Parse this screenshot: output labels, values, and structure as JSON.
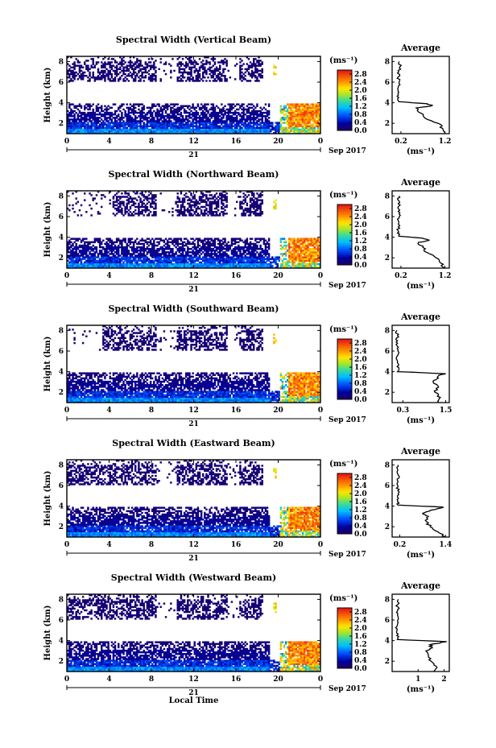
{
  "chart_data": [
    {
      "type": "heatmap",
      "title": "Spectral Width (Vertical Beam)",
      "ylabel": "Height (km)",
      "x_ticks": [
        "0",
        "4",
        "8",
        "12",
        "16",
        "20",
        "0"
      ],
      "y_ticks": [
        "2",
        "4",
        "6",
        "8"
      ],
      "date_day": "21",
      "date_label": "Sep 2017",
      "colorbar": {
        "unit": "(ms⁻¹)",
        "ticks": [
          "0.0",
          "0.4",
          "0.8",
          "1.2",
          "1.6",
          "2.0",
          "2.4",
          "2.8"
        ],
        "range": [
          0,
          3.0
        ]
      },
      "profile": {
        "title": "Average",
        "xlabel": "(ms⁻¹)",
        "x_ticks": [
          "0.2",
          "1.2"
        ],
        "xlim": [
          0.0,
          1.3
        ],
        "y_ticks": [
          "2",
          "4",
          "6",
          "8"
        ],
        "heights": [
          1.0,
          1.5,
          2.0,
          2.5,
          3.0,
          3.5,
          3.7,
          3.9,
          4.1,
          4.5,
          5.0,
          5.5,
          6.0,
          6.5,
          7.0,
          7.5,
          8.0
        ],
        "values": [
          1.2,
          1.15,
          1.05,
          0.75,
          0.65,
          0.55,
          0.9,
          0.8,
          0.15,
          0.15,
          0.15,
          0.14,
          0.16,
          0.14,
          0.15,
          0.18,
          0.16
        ]
      }
    },
    {
      "type": "heatmap",
      "title": "Spectral Width (Northward Beam)",
      "ylabel": "Height (km)",
      "x_ticks": [
        "0",
        "4",
        "8",
        "12",
        "16",
        "20",
        "0"
      ],
      "y_ticks": [
        "2",
        "4",
        "6",
        "8"
      ],
      "date_day": "21",
      "date_label": "Sep 2017",
      "colorbar": {
        "unit": "(ms⁻¹)",
        "ticks": [
          "0.0",
          "0.4",
          "0.8",
          "1.2",
          "1.6",
          "2.0",
          "2.4",
          "2.8"
        ],
        "range": [
          0,
          3.0
        ]
      },
      "profile": {
        "title": "Average",
        "xlabel": "(ms⁻¹)",
        "x_ticks": [
          "0.2",
          "1.2"
        ],
        "xlim": [
          0.0,
          1.3
        ],
        "y_ticks": [
          "2",
          "4",
          "6",
          "8"
        ],
        "heights": [
          1.0,
          1.5,
          2.0,
          2.5,
          3.0,
          3.5,
          3.7,
          3.9,
          4.1,
          4.5,
          5.0,
          5.5,
          6.0,
          6.5,
          7.0,
          7.5,
          8.0
        ],
        "values": [
          1.2,
          1.1,
          1.0,
          0.8,
          0.7,
          0.6,
          0.85,
          0.7,
          0.15,
          0.15,
          0.14,
          0.15,
          0.16,
          0.14,
          0.15,
          0.16,
          0.15
        ]
      }
    },
    {
      "type": "heatmap",
      "title": "Spectral Width (Southward Beam)",
      "ylabel": "Height (km)",
      "x_ticks": [
        "0",
        "4",
        "8",
        "12",
        "16",
        "20",
        "0"
      ],
      "y_ticks": [
        "2",
        "4",
        "6",
        "8"
      ],
      "date_day": "21",
      "date_label": "Sep 2017",
      "colorbar": {
        "unit": "(ms⁻¹)",
        "ticks": [
          "0.0",
          "0.4",
          "0.8",
          "1.2",
          "1.6",
          "2.0",
          "2.4",
          "2.8"
        ],
        "range": [
          0,
          3.0
        ]
      },
      "profile": {
        "title": "Average",
        "xlabel": "(ms⁻¹)",
        "x_ticks": [
          "0.3",
          "1.5"
        ],
        "xlim": [
          0.0,
          1.6
        ],
        "y_ticks": [
          "2",
          "4",
          "6",
          "8"
        ],
        "heights": [
          1.0,
          1.5,
          2.0,
          2.5,
          3.0,
          3.3,
          3.6,
          3.8,
          4.0,
          4.5,
          5.0,
          5.5,
          6.0,
          6.5,
          7.0,
          7.5,
          8.0
        ],
        "values": [
          1.3,
          1.35,
          1.2,
          1.3,
          1.15,
          1.25,
          1.3,
          1.5,
          0.15,
          0.14,
          0.15,
          0.14,
          0.16,
          0.14,
          0.15,
          0.15,
          0.14
        ]
      }
    },
    {
      "type": "heatmap",
      "title": "Spectral Width (Eastward Beam)",
      "ylabel": "Height (km)",
      "x_ticks": [
        "0",
        "4",
        "8",
        "12",
        "16",
        "20",
        "0"
      ],
      "y_ticks": [
        "2",
        "4",
        "6",
        "8"
      ],
      "date_day": "21",
      "date_label": "Sep 2017",
      "colorbar": {
        "unit": "(ms⁻¹)",
        "ticks": [
          "0.0",
          "0.4",
          "0.8",
          "1.2",
          "1.6",
          "2.0",
          "2.4",
          "2.8"
        ],
        "range": [
          0,
          3.0
        ]
      },
      "profile": {
        "title": "Average",
        "xlabel": "(ms⁻¹)",
        "x_ticks": [
          "0.2",
          "1.4"
        ],
        "xlim": [
          0.0,
          1.5
        ],
        "y_ticks": [
          "2",
          "4",
          "6",
          "8"
        ],
        "heights": [
          1.0,
          1.5,
          2.0,
          2.5,
          3.0,
          3.3,
          3.6,
          3.9,
          4.1,
          4.5,
          5.0,
          5.5,
          6.0,
          6.5,
          7.0,
          7.5,
          8.0
        ],
        "values": [
          1.4,
          1.2,
          1.0,
          0.9,
          0.95,
          0.8,
          1.0,
          1.35,
          0.15,
          0.15,
          0.14,
          0.15,
          0.15,
          0.14,
          0.16,
          0.15,
          0.15
        ]
      }
    },
    {
      "type": "heatmap",
      "title": "Spectral Width (Westward Beam)",
      "ylabel": "Height (km)",
      "x_ticks": [
        "0",
        "4",
        "8",
        "12",
        "16",
        "20",
        "0"
      ],
      "y_ticks": [
        "2",
        "4",
        "6",
        "8"
      ],
      "date_day": "21",
      "date_label": "Sep 2017",
      "xlabel": "Local Time",
      "colorbar": {
        "unit": "(ms⁻¹)",
        "ticks": [
          "0.0",
          "0.4",
          "0.8",
          "1.2",
          "1.6",
          "2.0",
          "2.4",
          "2.8"
        ],
        "range": [
          0,
          3.0
        ]
      },
      "profile": {
        "title": "Average",
        "xlabel": "(ms⁻¹)",
        "x_ticks": [
          "1",
          "2"
        ],
        "xlim": [
          0.0,
          2.2
        ],
        "y_ticks": [
          "2",
          "4",
          "6",
          "8"
        ],
        "heights": [
          1.0,
          1.5,
          2.0,
          2.5,
          3.0,
          3.3,
          3.6,
          3.9,
          4.1,
          4.5,
          5.0,
          5.5,
          6.0,
          6.5,
          7.0,
          7.5,
          8.0
        ],
        "values": [
          1.6,
          1.7,
          1.5,
          1.4,
          1.3,
          1.55,
          1.45,
          2.1,
          0.2,
          0.18,
          0.19,
          0.2,
          0.22,
          0.2,
          0.21,
          0.22,
          0.24
        ]
      }
    }
  ]
}
